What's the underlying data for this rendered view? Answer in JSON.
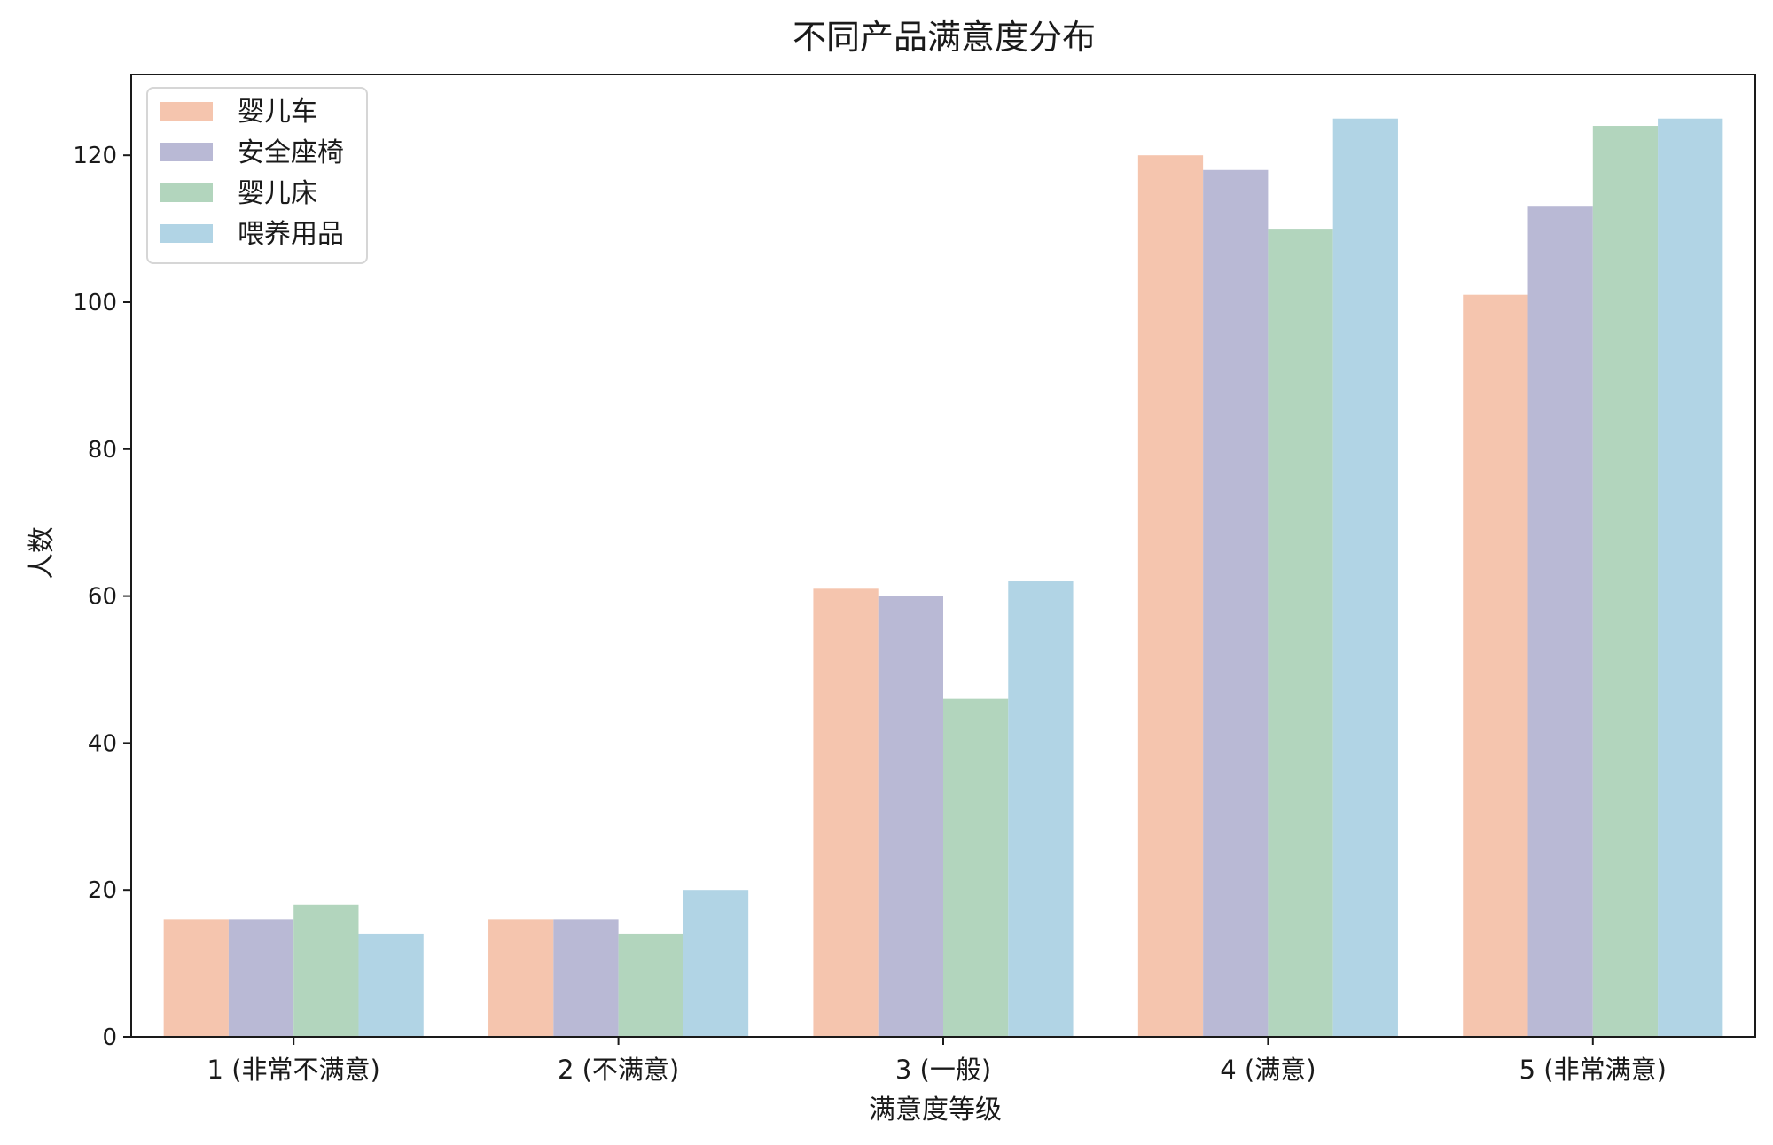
{
  "chart_data": {
    "type": "bar",
    "title": "不同产品满意度分布",
    "xlabel": "满意度等级",
    "ylabel": "人数",
    "categories": [
      "1 (非常不满意)",
      "2 (不满意)",
      "3 (一般)",
      "4 (满意)",
      "5 (非常满意)"
    ],
    "ylim": [
      0,
      131
    ],
    "yticks": [
      0,
      20,
      40,
      60,
      80,
      100,
      120
    ],
    "grid": false,
    "legend_position": "top-left",
    "series": [
      {
        "name": "婴儿车",
        "color": "#f5c5ae",
        "values": [
          16,
          16,
          61,
          120,
          101
        ]
      },
      {
        "name": "安全座椅",
        "color": "#b9b9d5",
        "values": [
          16,
          16,
          60,
          118,
          113
        ]
      },
      {
        "name": "婴儿床",
        "color": "#b2d5bd",
        "values": [
          18,
          14,
          46,
          110,
          124
        ]
      },
      {
        "name": "喂养用品",
        "color": "#b1d4e5",
        "values": [
          14,
          20,
          62,
          125,
          125
        ]
      }
    ]
  }
}
